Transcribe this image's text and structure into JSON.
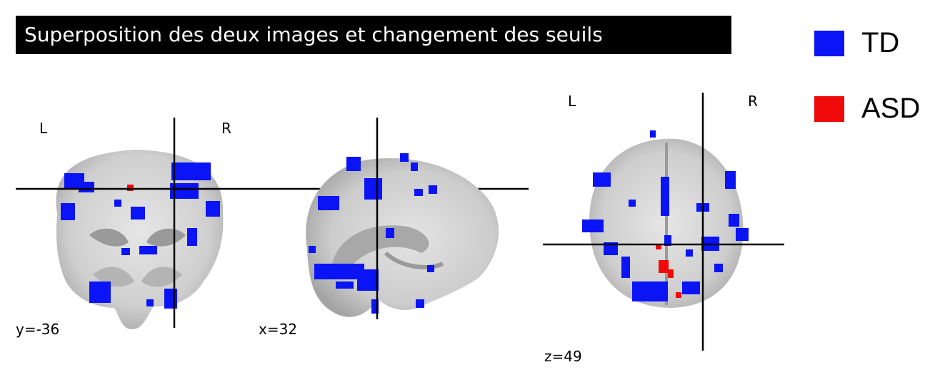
{
  "title": "Superposition des deux images et changement des seuils",
  "views": {
    "coronal": {
      "coord": "y=-36",
      "left_label": "L",
      "right_label": "R"
    },
    "sagittal": {
      "coord": "x=32"
    },
    "axial": {
      "coord": "z=49",
      "left_label": "L",
      "right_label": "R"
    }
  },
  "legend": [
    {
      "label": "TD",
      "color": "#0a14f5"
    },
    {
      "label": "ASD",
      "color": "#f00a0a"
    }
  ],
  "colors": {
    "td": "#0a14f5",
    "asd": "#f00a0a",
    "brain": "#c8c8c8",
    "crosshair": "#000000"
  }
}
